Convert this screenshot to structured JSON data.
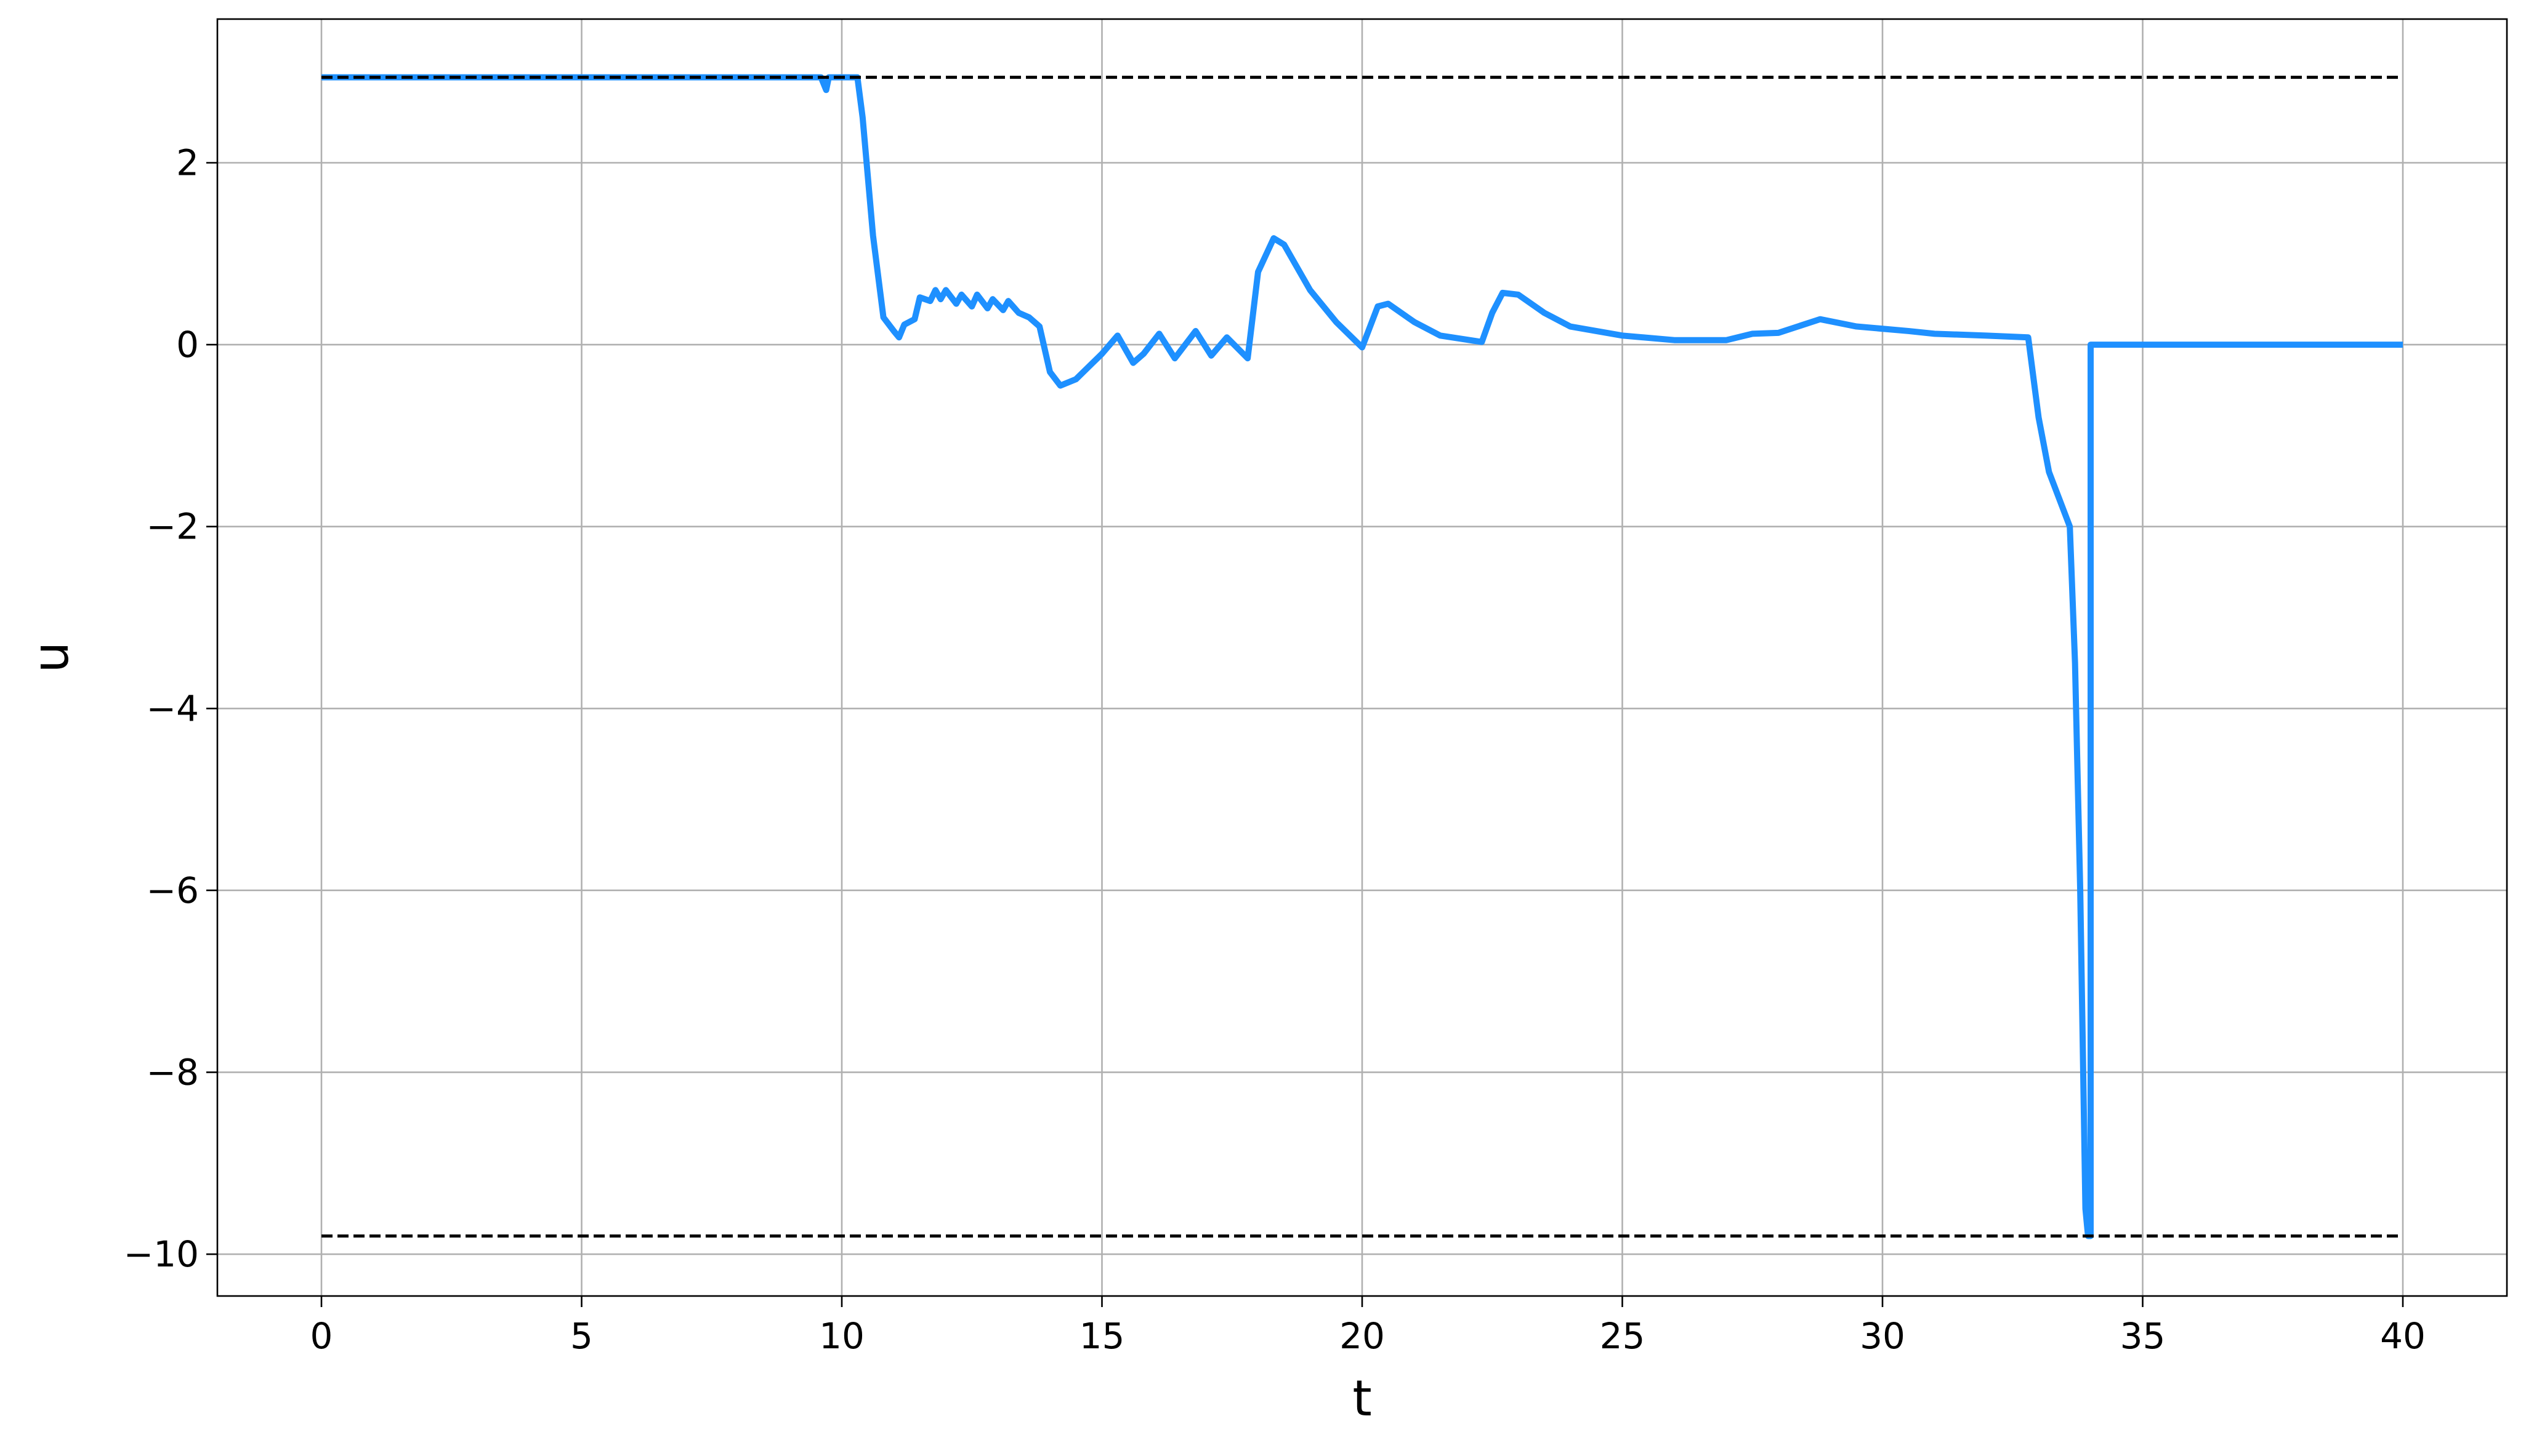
{
  "chart_data": {
    "type": "line",
    "xlabel": "t",
    "ylabel": "u",
    "xlim": [
      -2,
      42
    ],
    "ylim": [
      -10.46,
      3.58
    ],
    "xticks": [
      0,
      5,
      10,
      15,
      20,
      25,
      30,
      35,
      40
    ],
    "yticks": [
      {
        "value": -10,
        "label": "−10"
      },
      {
        "value": -8,
        "label": "−8"
      },
      {
        "value": -6,
        "label": "−6"
      },
      {
        "value": -4,
        "label": "−4"
      },
      {
        "value": -2,
        "label": "−2"
      },
      0,
      2
    ],
    "grid": true,
    "series": [
      {
        "color": "#1e90ff",
        "x": [
          0,
          9.6,
          9.7,
          9.75,
          10.3,
          10.4,
          10.6,
          10.8,
          11,
          11.1,
          11.2,
          11.4,
          11.5,
          11.7,
          11.8,
          11.9,
          12,
          12.2,
          12.3,
          12.5,
          12.6,
          12.8,
          12.9,
          13.1,
          13.2,
          13.4,
          13.6,
          13.8,
          14.0,
          14.2,
          14.5,
          15,
          15.3,
          15.6,
          15.8,
          16.1,
          16.4,
          16.6,
          16.8,
          17.1,
          17.4,
          17.8,
          18.0,
          18.3,
          18.5,
          19,
          19.5,
          20,
          20.3,
          20.5,
          21,
          21.5,
          22.3,
          22.5,
          22.7,
          23,
          23.5,
          24,
          25,
          26,
          27,
          27.5,
          28,
          28.8,
          29.5,
          30.5,
          31,
          32,
          32.8,
          33,
          33.2,
          33.4,
          33.6,
          33.7,
          33.8,
          33.9,
          33.95,
          34.0,
          34.0,
          40
        ],
        "values": [
          2.94,
          2.94,
          2.8,
          2.94,
          2.94,
          2.5,
          1.2,
          0.3,
          0.15,
          0.08,
          0.22,
          0.28,
          0.52,
          0.48,
          0.6,
          0.5,
          0.6,
          0.45,
          0.55,
          0.42,
          0.55,
          0.4,
          0.5,
          0.38,
          0.48,
          0.35,
          0.3,
          0.2,
          -0.3,
          -0.45,
          -0.38,
          -0.1,
          0.1,
          -0.2,
          -0.1,
          0.12,
          -0.15,
          0.0,
          0.15,
          -0.12,
          0.08,
          -0.15,
          0.8,
          1.17,
          1.1,
          0.6,
          0.25,
          -0.03,
          0.42,
          0.45,
          0.25,
          0.1,
          0.03,
          0.35,
          0.57,
          0.55,
          0.35,
          0.2,
          0.1,
          0.05,
          0.05,
          0.12,
          0.13,
          0.28,
          0.2,
          0.15,
          0.12,
          0.1,
          0.08,
          -0.8,
          -1.4,
          -1.7,
          -2.0,
          -3.5,
          -6,
          -9.5,
          -9.8,
          -9.8,
          0.0,
          0.0
        ]
      },
      {
        "color": "#000000",
        "dashed": true,
        "x": [
          0,
          40
        ],
        "values": [
          2.94,
          2.94
        ]
      },
      {
        "color": "#000000",
        "dashed": true,
        "x": [
          0,
          40
        ],
        "values": [
          -9.8,
          -9.8
        ]
      }
    ]
  }
}
